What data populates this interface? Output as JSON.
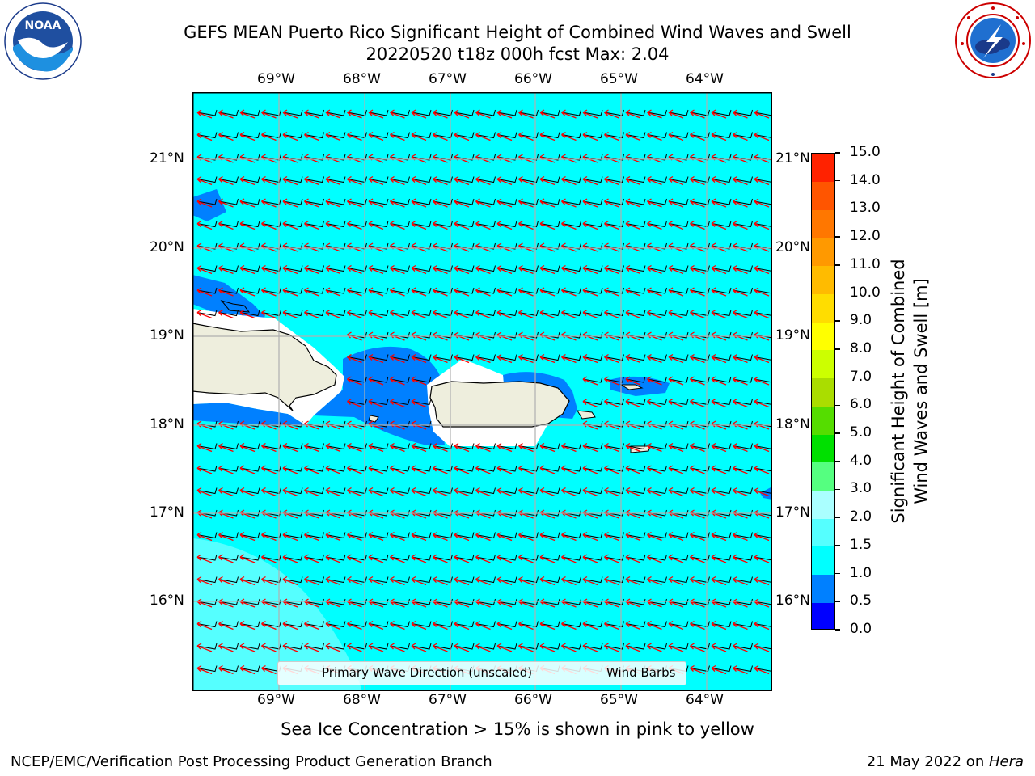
{
  "title": {
    "line1": "GEFS MEAN Puerto Rico Significant Height of Combined Wind Waves and Swell",
    "line2": "20220520 t18z 000h fcst   Max: 2.04"
  },
  "logos": {
    "left": {
      "name": "noaa-logo",
      "text": "NOAA"
    },
    "right": {
      "name": "nws-logo"
    }
  },
  "map": {
    "lon_labels": [
      "69°W",
      "68°W",
      "67°W",
      "66°W",
      "65°W",
      "64°W"
    ],
    "lat_labels": [
      "21°N",
      "20°N",
      "19°N",
      "18°N",
      "17°N",
      "16°N"
    ],
    "colors": {
      "sea": "#00ffff",
      "sea_light": "#55ffff",
      "sea_dark": "#0080ff",
      "land": "#eeeedd",
      "grid": "#b0b0b0",
      "wave_arrow": "#ff0000",
      "wind_barb": "#000000"
    }
  },
  "legend": {
    "wave": "Primary Wave Direction (unscaled)",
    "wind": "Wind Barbs"
  },
  "colorbar": {
    "label_line1": "Significant Height of Combined",
    "label_line2": "Wind Waves and Swell [m]",
    "ticks": [
      "0.0",
      "0.5",
      "1.0",
      "1.5",
      "2.0",
      "3.0",
      "4.0",
      "5.0",
      "6.0",
      "7.0",
      "8.0",
      "9.0",
      "10.0",
      "11.0",
      "12.0",
      "13.0",
      "14.0",
      "15.0"
    ],
    "colors": [
      "#0000ff",
      "#0080ff",
      "#00ffff",
      "#55ffff",
      "#aaffff",
      "#55ff80",
      "#00e000",
      "#55dd00",
      "#aadd00",
      "#ccff00",
      "#ffff00",
      "#ffdd00",
      "#ffbb00",
      "#ff9900",
      "#ff7700",
      "#ff5500",
      "#ff2200"
    ]
  },
  "footer": {
    "sea_ice_note": "Sea Ice Concentration > 15% is shown in pink to yellow",
    "left": "NCEP/EMC/Verification Post Processing Product Generation Branch",
    "right_date": "21 May 2022 on ",
    "right_host": "Hera"
  }
}
